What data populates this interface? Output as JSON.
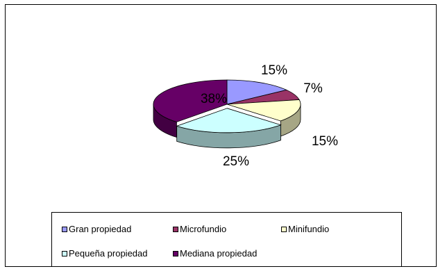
{
  "chart_data": {
    "type": "pie",
    "title": "",
    "categories": [
      "Gran propiedad",
      "Microfundio",
      "Minifundio",
      "Pequeña propiedad",
      "Mediana propiedad"
    ],
    "values": [
      15,
      7,
      15,
      25,
      38
    ],
    "labels": [
      "15%",
      "7%",
      "15%",
      "25%",
      "38%"
    ],
    "colors": [
      "#9999ff",
      "#993366",
      "#ffffcc",
      "#ccffff",
      "#660066"
    ],
    "legend_position": "bottom",
    "style": "3d-exploded"
  }
}
